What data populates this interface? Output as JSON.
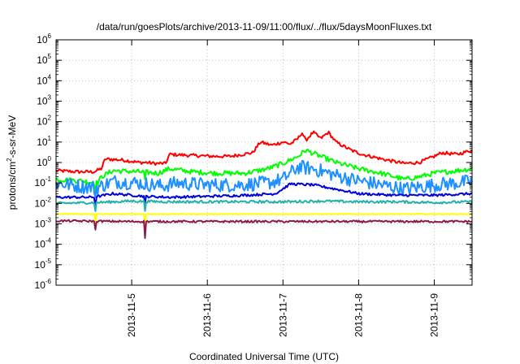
{
  "chart_data": {
    "type": "line",
    "title": "/data/run/goesPlots/archive/2013-11-09/11:00/flux/../flux/5daysMoonFluxes.txt",
    "xlabel": "Coordinated Universal Time (UTC)",
    "ylabel": {
      "base": "protons/cm",
      "sup": "2",
      "rest": "-s-sr-MeV"
    },
    "yscale": "log",
    "ylim_exponents": [
      -6,
      6
    ],
    "ytick_labels": [
      {
        "base": "10",
        "exp": "-6"
      },
      {
        "base": "10",
        "exp": "-5"
      },
      {
        "base": "10",
        "exp": "-4"
      },
      {
        "base": "10",
        "exp": "-3"
      },
      {
        "base": "10",
        "exp": "-2"
      },
      {
        "base": "10",
        "exp": "-1"
      },
      {
        "base": "10",
        "exp": "0"
      },
      {
        "base": "10",
        "exp": "1"
      },
      {
        "base": "10",
        "exp": "2"
      },
      {
        "base": "10",
        "exp": "3"
      },
      {
        "base": "10",
        "exp": "4"
      },
      {
        "base": "10",
        "exp": "5"
      },
      {
        "base": "10",
        "exp": "6"
      }
    ],
    "xlim_days": [
      4.0,
      9.5
    ],
    "xticks": [
      {
        "day": 5,
        "label": "2013-11-5"
      },
      {
        "day": 6,
        "label": "2013-11-6"
      },
      {
        "day": 7,
        "label": "2013-11-7"
      },
      {
        "day": 8,
        "label": "2013-11-8"
      },
      {
        "day": 9,
        "label": "2013-11-9"
      }
    ],
    "grid": true,
    "series": [
      {
        "color": "#ff0000",
        "noise": 0.08,
        "points": [
          [
            4.0,
            0.4
          ],
          [
            4.3,
            0.35
          ],
          [
            4.5,
            0.35
          ],
          [
            4.6,
            0.5
          ],
          [
            4.65,
            1.5
          ],
          [
            4.9,
            1.3
          ],
          [
            5.1,
            1.0
          ],
          [
            5.2,
            1.0
          ],
          [
            5.3,
            0.9
          ],
          [
            5.45,
            0.9
          ],
          [
            5.5,
            2.5
          ],
          [
            5.8,
            2.2
          ],
          [
            6.1,
            2.0
          ],
          [
            6.3,
            2.0
          ],
          [
            6.6,
            3.0
          ],
          [
            6.7,
            10.0
          ],
          [
            6.85,
            7.0
          ],
          [
            7.0,
            10.0
          ],
          [
            7.1,
            8.0
          ],
          [
            7.2,
            15.0
          ],
          [
            7.25,
            30.0
          ],
          [
            7.3,
            12.0
          ],
          [
            7.4,
            30.0
          ],
          [
            7.5,
            15.0
          ],
          [
            7.6,
            30.0
          ],
          [
            7.7,
            10.0
          ],
          [
            7.9,
            4.0
          ],
          [
            8.05,
            2.5
          ],
          [
            8.3,
            1.5
          ],
          [
            8.6,
            0.9
          ],
          [
            8.8,
            1.0
          ],
          [
            9.0,
            2.0
          ],
          [
            9.1,
            3.0
          ],
          [
            9.3,
            2.5
          ],
          [
            9.5,
            4.0
          ]
        ]
      },
      {
        "color": "#00ff00",
        "noise": 0.12,
        "points": [
          [
            4.0,
            0.15
          ],
          [
            4.3,
            0.13
          ],
          [
            4.55,
            0.1
          ],
          [
            4.6,
            0.2
          ],
          [
            4.75,
            0.4
          ],
          [
            5.1,
            0.35
          ],
          [
            5.35,
            0.3
          ],
          [
            5.5,
            0.5
          ],
          [
            5.8,
            0.35
          ],
          [
            6.1,
            0.3
          ],
          [
            6.5,
            0.3
          ],
          [
            6.8,
            0.5
          ],
          [
            7.0,
            0.9
          ],
          [
            7.2,
            2.0
          ],
          [
            7.3,
            4.0
          ],
          [
            7.5,
            2.0
          ],
          [
            7.7,
            1.0
          ],
          [
            8.0,
            0.5
          ],
          [
            8.3,
            0.3
          ],
          [
            8.6,
            0.15
          ],
          [
            8.8,
            0.2
          ],
          [
            9.0,
            0.3
          ],
          [
            9.3,
            0.4
          ],
          [
            9.5,
            0.5
          ]
        ]
      },
      {
        "color": "#1e90ff",
        "noise": 0.35,
        "points": [
          [
            4.0,
            0.1
          ],
          [
            4.3,
            0.07
          ],
          [
            4.55,
            0.06
          ],
          [
            4.75,
            0.12
          ],
          [
            5.1,
            0.1
          ],
          [
            5.4,
            0.07
          ],
          [
            5.6,
            0.1
          ],
          [
            6.0,
            0.08
          ],
          [
            6.4,
            0.08
          ],
          [
            6.8,
            0.1
          ],
          [
            7.0,
            0.15
          ],
          [
            7.2,
            0.6
          ],
          [
            7.4,
            0.5
          ],
          [
            7.6,
            0.3
          ],
          [
            7.9,
            0.15
          ],
          [
            8.3,
            0.08
          ],
          [
            8.6,
            0.05
          ],
          [
            9.0,
            0.08
          ],
          [
            9.3,
            0.1
          ],
          [
            9.5,
            0.12
          ]
        ]
      },
      {
        "color": "#0000dd",
        "noise": 0.06,
        "points": [
          [
            4.0,
            0.02
          ],
          [
            4.5,
            0.02
          ],
          [
            4.75,
            0.03
          ],
          [
            5.2,
            0.022
          ],
          [
            5.5,
            0.02
          ],
          [
            6.0,
            0.022
          ],
          [
            6.5,
            0.025
          ],
          [
            6.9,
            0.03
          ],
          [
            7.1,
            0.09
          ],
          [
            7.4,
            0.08
          ],
          [
            7.7,
            0.05
          ],
          [
            8.0,
            0.03
          ],
          [
            8.5,
            0.025
          ],
          [
            9.0,
            0.025
          ],
          [
            9.5,
            0.03
          ]
        ]
      },
      {
        "color": "#20b2aa",
        "noise": 0.06,
        "points": [
          [
            4.0,
            0.01
          ],
          [
            4.5,
            0.011
          ],
          [
            5.0,
            0.013
          ],
          [
            5.5,
            0.012
          ],
          [
            6.0,
            0.012
          ],
          [
            6.5,
            0.012
          ],
          [
            7.0,
            0.012
          ],
          [
            7.5,
            0.013
          ],
          [
            8.0,
            0.012
          ],
          [
            8.5,
            0.012
          ],
          [
            9.0,
            0.011
          ],
          [
            9.5,
            0.012
          ]
        ]
      },
      {
        "color": "#ffff00",
        "noise": 0.02,
        "points": [
          [
            4.0,
            0.003
          ],
          [
            5.0,
            0.003
          ],
          [
            6.0,
            0.003
          ],
          [
            7.0,
            0.003
          ],
          [
            8.0,
            0.003
          ],
          [
            9.0,
            0.003
          ],
          [
            9.5,
            0.003
          ]
        ]
      },
      {
        "color": "#8b1a4a",
        "noise": 0.05,
        "points": [
          [
            4.0,
            0.0014
          ],
          [
            5.0,
            0.0013
          ],
          [
            6.0,
            0.0013
          ],
          [
            7.0,
            0.0013
          ],
          [
            8.0,
            0.0013
          ],
          [
            9.0,
            0.0013
          ],
          [
            9.5,
            0.0013
          ]
        ]
      }
    ]
  }
}
